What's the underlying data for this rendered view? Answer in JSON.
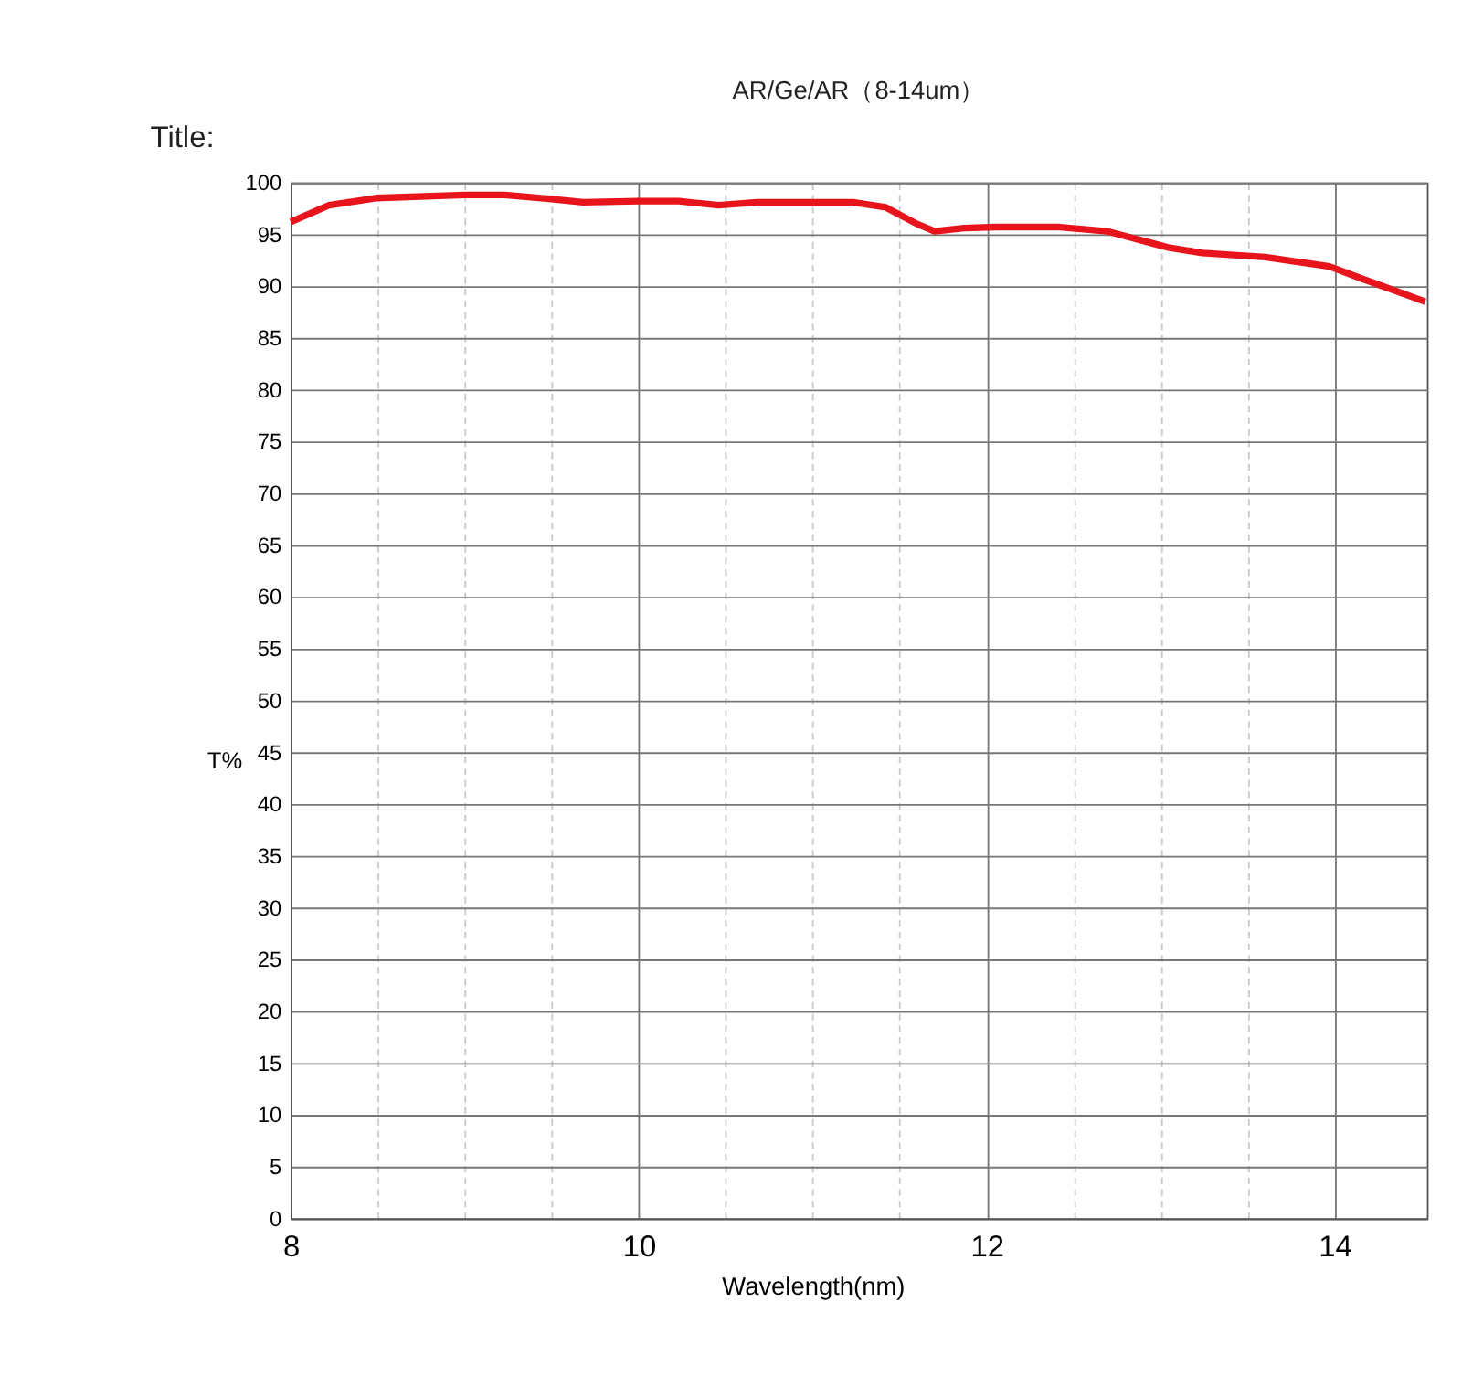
{
  "chart_data": {
    "type": "line",
    "title": "AR/Ge/AR（8-14um）",
    "annotations": [
      "Title:"
    ],
    "xlabel": "Wavelength(nm)",
    "ylabel": "T%",
    "x": [
      8,
      8.22,
      8.49,
      9.0,
      9.23,
      9.5,
      9.68,
      10,
      10.23,
      10.46,
      10.68,
      11.23,
      11.42,
      11.6,
      11.7,
      11.87,
      12.05,
      12.42,
      12.69,
      13.05,
      13.24,
      13.6,
      13.97,
      14.16,
      14.52
    ],
    "series": [
      {
        "color": "#e8141c",
        "values": [
          96.2,
          97.8,
          98.5,
          98.8,
          98.8,
          98.4,
          98.1,
          98.2,
          98.2,
          97.8,
          98.1,
          98.1,
          97.6,
          96.0,
          95.3,
          95.6,
          95.7,
          95.7,
          95.3,
          93.7,
          93.2,
          92.8,
          91.9,
          90.7,
          88.5
        ]
      }
    ],
    "xlim": [
      8,
      14.53
    ],
    "ylim": [
      0,
      100
    ],
    "xticks": [
      8,
      {
        "value": 8.5,
        "label": null
      },
      {
        "value": 9,
        "label": null
      },
      {
        "value": 9.5,
        "label": null
      },
      10,
      {
        "value": 10.5,
        "label": null
      },
      {
        "value": 11,
        "label": null
      },
      {
        "value": 11.5,
        "label": null
      },
      12,
      {
        "value": 12.5,
        "label": null
      },
      {
        "value": 13,
        "label": null
      },
      {
        "value": 13.5,
        "label": null
      },
      14
    ],
    "yticks": [
      0,
      5,
      10,
      15,
      20,
      25,
      30,
      35,
      40,
      45,
      50,
      55,
      60,
      65,
      70,
      75,
      80,
      85,
      90,
      95,
      100
    ],
    "grid": true,
    "marker": "none",
    "line_style": "solid"
  }
}
